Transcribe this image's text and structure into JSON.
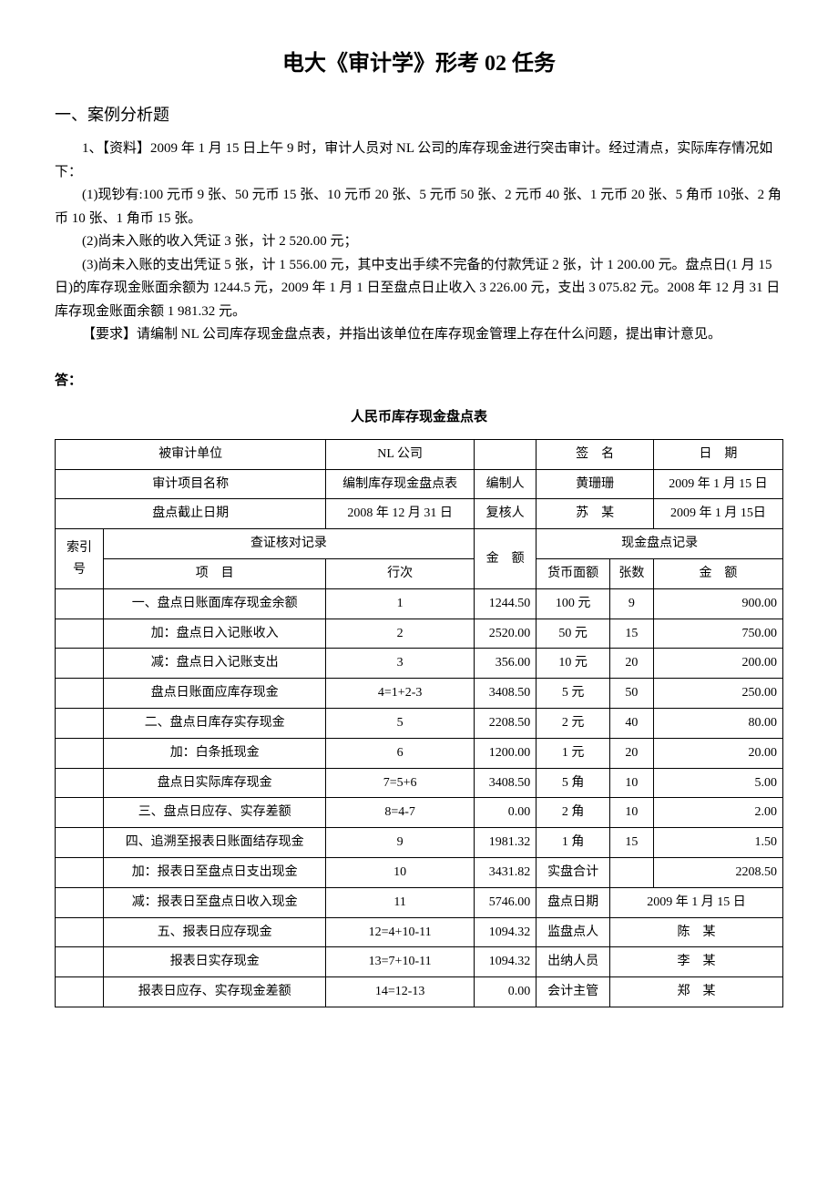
{
  "title": "电大《审计学》形考 02 任务",
  "section1_heading": "一、案例分析题",
  "para1": "1、【资料】2009 年 1 月 15 日上午 9 时，审计人员对 NL 公司的库存现金进行突击审计。经过清点，实际库存情况如下：",
  "para2": "(1)现钞有:100 元币 9 张、50 元币 15 张、10 元币 20 张、5 元币 50 张、2 元币 40 张、1 元币 20 张、5 角币 10张、2 角币 10 张、1 角币 15 张。",
  "para3": "(2)尚未入账的收入凭证 3 张，计 2 520.00 元；",
  "para4": "(3)尚未入账的支出凭证 5 张，计 1 556.00 元，其中支出手续不完备的付款凭证 2 张，计 1 200.00 元。盘点日(1 月 15 日)的库存现金账面余额为 1244.5 元，2009 年 1 月 1 日至盘点日止收入 3 226.00 元，支出 3 075.82 元。2008 年 12 月 31 日库存现金账面余额 1 981.32 元。",
  "para5": "【要求】请编制 NL 公司库存现金盘点表，并指出该单位在库存现金管理上存在什么问题，提出审计意见。",
  "answer_label": "答：",
  "table_title": "人民币库存现金盘点表",
  "header": {
    "audited_unit_label": "被审计单位",
    "audited_unit_value": "NL 公司",
    "sign_label": "签　名",
    "date_label": "日　期",
    "project_label": "审计项目名称",
    "project_value": "编制库存现金盘点表",
    "preparer_label": "编制人",
    "preparer_value": "黄珊珊",
    "preparer_date": "2009 年 1 月 15 日",
    "cutoff_label": "盘点截止日期",
    "cutoff_value": "2008 年 12 月 31 日",
    "reviewer_label": "复核人",
    "reviewer_value": "苏　某",
    "reviewer_date": "2009 年 1 月 15日",
    "index_label": "索引号",
    "ledger_section": "查证核对记录",
    "count_section": "现金盘点记录",
    "item_label": "项　目",
    "line_label": "行次",
    "amount_label": "金　额",
    "denom_label": "货币面额",
    "sheets_label": "张数",
    "amount2_label": "金　额"
  },
  "ledger_rows": [
    {
      "item": "一、盘点日账面库存现金余额",
      "line": "1",
      "amount": "1244.50"
    },
    {
      "item": "加：盘点日入记账收入",
      "line": "2",
      "amount": "2520.00"
    },
    {
      "item": "减：盘点日入记账支出",
      "line": "3",
      "amount": "356.00"
    },
    {
      "item": "盘点日账面应库存现金",
      "line": "4=1+2-3",
      "amount": "3408.50"
    },
    {
      "item": "二、盘点日库存实存现金",
      "line": "5",
      "amount": "2208.50"
    },
    {
      "item": "加：白条抵现金",
      "line": "6",
      "amount": "1200.00"
    },
    {
      "item": "盘点日实际库存现金",
      "line": "7=5+6",
      "amount": "3408.50"
    },
    {
      "item": "三、盘点日应存、实存差额",
      "line": "8=4-7",
      "amount": "0.00"
    },
    {
      "item": "四、追溯至报表日账面结存现金",
      "line": "9",
      "amount": "1981.32"
    },
    {
      "item": "加：报表日至盘点日支出现金",
      "line": "10",
      "amount": "3431.82"
    },
    {
      "item": "减：报表日至盘点日收入现金",
      "line": "11",
      "amount": "5746.00"
    },
    {
      "item": "五、报表日应存现金",
      "line": "12=4+10-11",
      "amount": "1094.32"
    },
    {
      "item": "报表日实存现金",
      "line": "13=7+10-11",
      "amount": "1094.32"
    },
    {
      "item": "报表日应存、实存现金差额",
      "line": "14=12-13",
      "amount": "0.00"
    }
  ],
  "count_rows": [
    {
      "denom": "100 元",
      "sheets": "9",
      "amount": "900.00"
    },
    {
      "denom": "50 元",
      "sheets": "15",
      "amount": "750.00"
    },
    {
      "denom": "10 元",
      "sheets": "20",
      "amount": "200.00"
    },
    {
      "denom": "5 元",
      "sheets": "50",
      "amount": "250.00"
    },
    {
      "denom": "2 元",
      "sheets": "40",
      "amount": "80.00"
    },
    {
      "denom": "1 元",
      "sheets": "20",
      "amount": "20.00"
    },
    {
      "denom": "5 角",
      "sheets": "10",
      "amount": "5.00"
    },
    {
      "denom": "2 角",
      "sheets": "10",
      "amount": "2.00"
    },
    {
      "denom": "1 角",
      "sheets": "15",
      "amount": "1.50"
    }
  ],
  "subtotal_label": "实盘合计",
  "subtotal_amount": "2208.50",
  "footer": {
    "count_date_label": "盘点日期",
    "count_date_value": "2009 年 1 月 15 日",
    "supervisor_label": "监盘点人",
    "supervisor_value": "陈　某",
    "cashier_label": "出纳人员",
    "cashier_value": "李　某",
    "chief_label": "会计主管",
    "chief_value": "郑　某"
  }
}
